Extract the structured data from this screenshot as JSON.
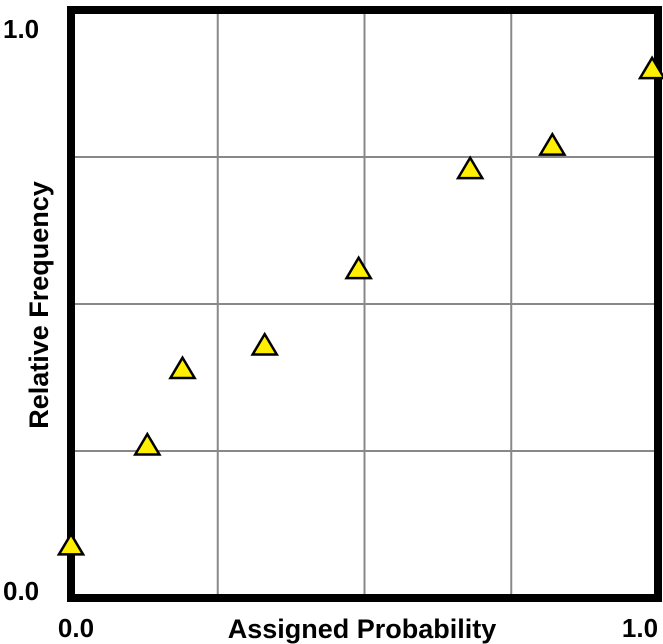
{
  "chart_data": {
    "type": "scatter",
    "title": "",
    "xlabel": "Assigned Probability",
    "ylabel": "Relative Frequency",
    "xlim": [
      0,
      1
    ],
    "ylim": [
      0,
      1
    ],
    "x_tick_labels": [
      "0.0",
      "1.0"
    ],
    "y_tick_labels": [
      "0.0",
      "1.0"
    ],
    "grid": true,
    "gridlines": 4,
    "marker": "triangle",
    "marker_color": "#ffee00",
    "marker_edge_color": "#000000",
    "points": [
      {
        "x": 0.0,
        "y": 0.09
      },
      {
        "x": 0.13,
        "y": 0.26
      },
      {
        "x": 0.19,
        "y": 0.39
      },
      {
        "x": 0.33,
        "y": 0.43
      },
      {
        "x": 0.49,
        "y": 0.56
      },
      {
        "x": 0.68,
        "y": 0.73
      },
      {
        "x": 0.82,
        "y": 0.77
      },
      {
        "x": 0.99,
        "y": 0.9
      }
    ]
  }
}
